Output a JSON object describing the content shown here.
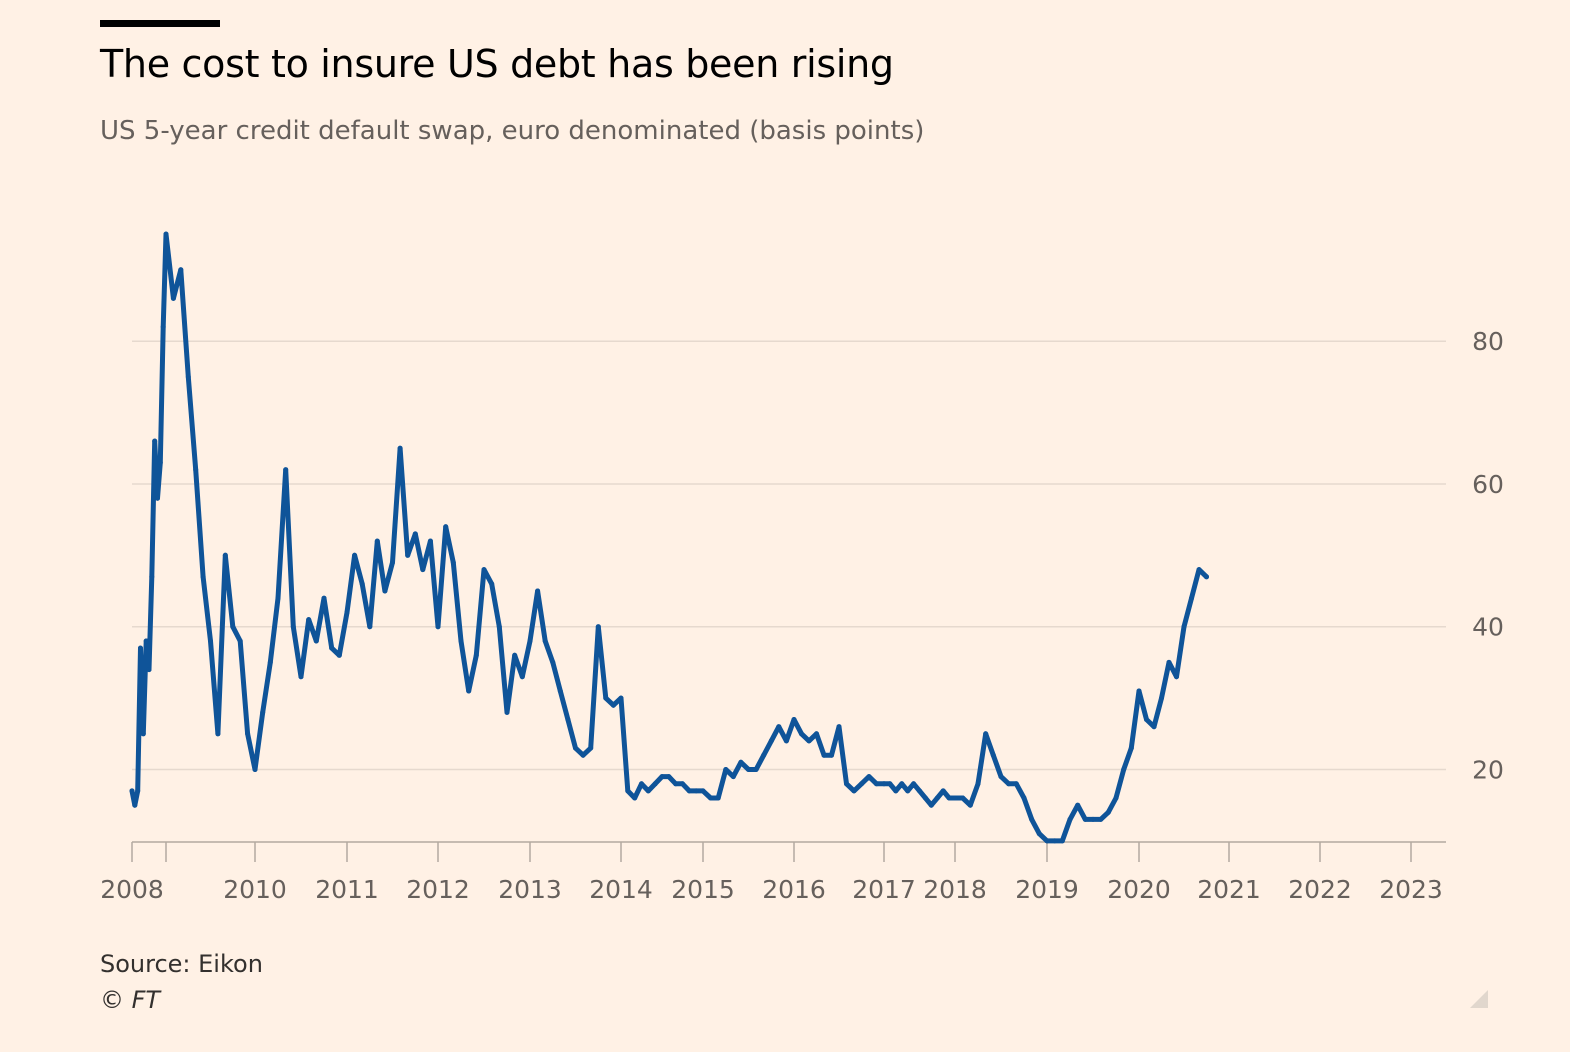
{
  "header": {
    "title": "The cost to insure US debt has been rising",
    "subtitle": "US 5-year credit default swap, euro denominated (basis points)"
  },
  "footer": {
    "source": "Source: Eikon",
    "copyright": "© FT"
  },
  "colors": {
    "background": "#fff1e5",
    "line": "#0f5499",
    "grid": "#e6d9ce",
    "axis": "#66605c"
  },
  "chart_data": {
    "type": "line",
    "title": "The cost to insure US debt has been rising",
    "subtitle": "US 5-year credit default swap, euro denominated (basis points)",
    "xlabel": "",
    "ylabel": "",
    "x_tick_labels": [
      "2008",
      "2010",
      "2011",
      "2012",
      "2013",
      "2014",
      "2015",
      "2016",
      "2017",
      "2018",
      "2019",
      "2020",
      "2021",
      "2022",
      "2023"
    ],
    "y_ticks": [
      20,
      40,
      60,
      80
    ],
    "y_axis_side": "right",
    "ylim": [
      9,
      96
    ],
    "grid": true,
    "legend": "none",
    "series": [
      {
        "points": [
          [
            "2008-01",
            17
          ],
          [
            "2008-02",
            15
          ],
          [
            "2008-03",
            17
          ],
          [
            "2008-04",
            37
          ],
          [
            "2008-05",
            25
          ],
          [
            "2008-06",
            38
          ],
          [
            "2008-07",
            34
          ],
          [
            "2008-08",
            47
          ],
          [
            "2008-09",
            66
          ],
          [
            "2008-10",
            58
          ],
          [
            "2008-11",
            63
          ],
          [
            "2008-12",
            82
          ],
          [
            "2009-01",
            95
          ],
          [
            "2009-02",
            86
          ],
          [
            "2009-03",
            90
          ],
          [
            "2009-04",
            75
          ],
          [
            "2009-05",
            62
          ],
          [
            "2009-06",
            47
          ],
          [
            "2009-07",
            38
          ],
          [
            "2009-08",
            25
          ],
          [
            "2009-09",
            50
          ],
          [
            "2009-10",
            40
          ],
          [
            "2009-11",
            38
          ],
          [
            "2009-12",
            25
          ],
          [
            "2010-01",
            20
          ],
          [
            "2010-02",
            28
          ],
          [
            "2010-03",
            35
          ],
          [
            "2010-04",
            44
          ],
          [
            "2010-05",
            62
          ],
          [
            "2010-06",
            40
          ],
          [
            "2010-07",
            33
          ],
          [
            "2010-08",
            41
          ],
          [
            "2010-09",
            38
          ],
          [
            "2010-10",
            44
          ],
          [
            "2010-11",
            37
          ],
          [
            "2010-12",
            36
          ],
          [
            "2011-01",
            42
          ],
          [
            "2011-02",
            50
          ],
          [
            "2011-03",
            46
          ],
          [
            "2011-04",
            40
          ],
          [
            "2011-05",
            52
          ],
          [
            "2011-06",
            45
          ],
          [
            "2011-07",
            49
          ],
          [
            "2011-08",
            65
          ],
          [
            "2011-09",
            50
          ],
          [
            "2011-10",
            53
          ],
          [
            "2011-11",
            48
          ],
          [
            "2011-12",
            52
          ],
          [
            "2012-01",
            40
          ],
          [
            "2012-02",
            54
          ],
          [
            "2012-03",
            49
          ],
          [
            "2012-04",
            38
          ],
          [
            "2012-05",
            31
          ],
          [
            "2012-06",
            36
          ],
          [
            "2012-07",
            48
          ],
          [
            "2012-08",
            46
          ],
          [
            "2012-09",
            40
          ],
          [
            "2012-10",
            28
          ],
          [
            "2012-11",
            36
          ],
          [
            "2012-12",
            33
          ],
          [
            "2013-01",
            38
          ],
          [
            "2013-02",
            45
          ],
          [
            "2013-03",
            38
          ],
          [
            "2013-04",
            35
          ],
          [
            "2013-05",
            31
          ],
          [
            "2013-06",
            27
          ],
          [
            "2013-07",
            23
          ],
          [
            "2013-08",
            22
          ],
          [
            "2013-09",
            23
          ],
          [
            "2013-10",
            40
          ],
          [
            "2013-11",
            30
          ],
          [
            "2013-12",
            29
          ],
          [
            "2014-01",
            30
          ],
          [
            "2014-02",
            17
          ],
          [
            "2014-03",
            16
          ],
          [
            "2014-04",
            18
          ],
          [
            "2014-05",
            17
          ],
          [
            "2014-06",
            18
          ],
          [
            "2014-07",
            19
          ],
          [
            "2014-08",
            19
          ],
          [
            "2014-09",
            18
          ],
          [
            "2014-10",
            18
          ],
          [
            "2014-11",
            17
          ],
          [
            "2014-12",
            17
          ],
          [
            "2015-01",
            17
          ],
          [
            "2015-02",
            16
          ],
          [
            "2015-03",
            16
          ],
          [
            "2015-04",
            20
          ],
          [
            "2015-05",
            19
          ],
          [
            "2015-06",
            21
          ],
          [
            "2015-07",
            20
          ],
          [
            "2015-08",
            20
          ],
          [
            "2015-09",
            22
          ],
          [
            "2015-10",
            24
          ],
          [
            "2015-11",
            26
          ],
          [
            "2015-12",
            24
          ],
          [
            "2016-01",
            27
          ],
          [
            "2016-02",
            25
          ],
          [
            "2016-03",
            24
          ],
          [
            "2016-04",
            25
          ],
          [
            "2016-05",
            22
          ],
          [
            "2016-06",
            22
          ],
          [
            "2016-07",
            26
          ],
          [
            "2016-08",
            18
          ],
          [
            "2016-09",
            17
          ],
          [
            "2016-10",
            18
          ],
          [
            "2016-11",
            19
          ],
          [
            "2016-12",
            18
          ],
          [
            "2017-01",
            18
          ],
          [
            "2017-02",
            18
          ],
          [
            "2017-03",
            17
          ],
          [
            "2017-04",
            18
          ],
          [
            "2017-05",
            17
          ],
          [
            "2017-06",
            18
          ],
          [
            "2017-07",
            17
          ],
          [
            "2017-08",
            16
          ],
          [
            "2017-09",
            15
          ],
          [
            "2017-10",
            16
          ],
          [
            "2017-11",
            17
          ],
          [
            "2017-12",
            16
          ],
          [
            "2018-01",
            16
          ],
          [
            "2018-02",
            16
          ],
          [
            "2018-03",
            15
          ],
          [
            "2018-04",
            18
          ],
          [
            "2018-05",
            25
          ],
          [
            "2018-06",
            22
          ],
          [
            "2018-07",
            19
          ],
          [
            "2018-08",
            18
          ],
          [
            "2018-09",
            18
          ],
          [
            "2018-10",
            16
          ],
          [
            "2018-11",
            13
          ],
          [
            "2018-12",
            11
          ],
          [
            "2019-01",
            10
          ],
          [
            "2019-02",
            10
          ],
          [
            "2019-03",
            10
          ],
          [
            "2019-04",
            13
          ],
          [
            "2019-05",
            15
          ],
          [
            "2019-06",
            13
          ],
          [
            "2019-07",
            13
          ],
          [
            "2019-08",
            13
          ],
          [
            "2019-09",
            14
          ],
          [
            "2019-10",
            16
          ],
          [
            "2019-11",
            20
          ],
          [
            "2019-12",
            23
          ],
          [
            "2020-01",
            31
          ],
          [
            "2020-02",
            27
          ],
          [
            "2020-03",
            26
          ],
          [
            "2020-04",
            30
          ],
          [
            "2020-05",
            35
          ],
          [
            "2020-06",
            33
          ],
          [
            "2020-07",
            40
          ],
          [
            "2020-08",
            44
          ],
          [
            "2020-09",
            48
          ],
          [
            "2020-10",
            47
          ]
        ]
      }
    ]
  }
}
